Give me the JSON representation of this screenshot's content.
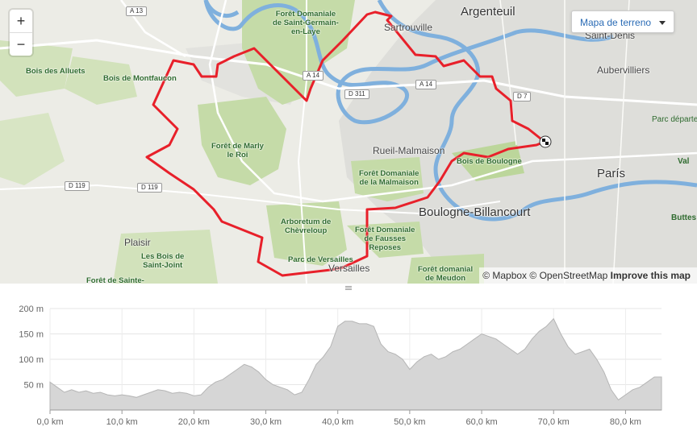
{
  "map": {
    "style_select": "Mapa de terreno",
    "attribution": {
      "mapbox": "© Mapbox",
      "osm": "© OpenStreetMap",
      "improve": "Improve this map"
    },
    "labels": {
      "argenteuil": "Argenteuil",
      "saint_denis": "Saint-Denis",
      "sartrouville": "Sartrouville",
      "aubervilliers": "Aubervilliers",
      "parc_departement": "Parc départeme",
      "rueil": "Rueil-Malmaison",
      "boulogne": "Boulogne-Billancourt",
      "paris": "París",
      "bois_boulogne": "Bois de Boulogne",
      "plaisir": "Plaisir",
      "versailles": "Versailles",
      "bois_alluets": "Bois des Alluets",
      "bois_montfaucon": "Bois de Montfaucon",
      "foret_saint_germain": "Forêt Domaniale\nde Saint-Germain-\nen-Laye",
      "foret_marly": "Forêt de Marly\nle Roi",
      "foret_malmaison": "Forêt Domaniale\nde la Malmaison",
      "arboretum": "Arboretum de\nChèvreloup",
      "foret_fausses": "Forêt Domaniale\nde Fausses\nReposes",
      "parc_versailles": "Parc de Versailles",
      "bois_saint_joint": "Les Bois de\nSaint-Joint",
      "foret_sainte": "Forêt de Sainte-",
      "foret_meudon": "Forêt domanial\nde Meudon",
      "buttes": "Buttes Chaumont",
      "val": "Val"
    },
    "shields": {
      "a13": "A 13",
      "a14_1": "A 14",
      "a14_2": "A 14",
      "d311": "D 311",
      "d7": "D 7",
      "d119_1": "D 119",
      "d119_2": "D 119"
    },
    "colors": {
      "route": "#e8202a",
      "water": "#7fb0dd",
      "forest": "#c7dcaa",
      "urban": "#dcdcd8"
    }
  },
  "chart_data": {
    "type": "area",
    "x_unit": "km",
    "y_unit": "m",
    "xlim": [
      0,
      85
    ],
    "ylim": [
      0,
      200
    ],
    "x_ticks": [
      "0,0 km",
      "10,0 km",
      "20,0 km",
      "30,0 km",
      "40,0 km",
      "50,0 km",
      "60,0 km",
      "70,0 km",
      "80,0 km"
    ],
    "y_ticks": [
      "50 m",
      "100 m",
      "150 m",
      "200 m"
    ],
    "grid": true,
    "series": [
      {
        "x": [
          0,
          1,
          2,
          3,
          4,
          5,
          6,
          7,
          8,
          9,
          10,
          11,
          12,
          13,
          14,
          15,
          16,
          17,
          18,
          19,
          20,
          21,
          22,
          23,
          24,
          25,
          26,
          27,
          28,
          29,
          30,
          31,
          32,
          33,
          34,
          35,
          36,
          37,
          38,
          39,
          40,
          41,
          42,
          43,
          44,
          45,
          46,
          47,
          48,
          49,
          50,
          51,
          52,
          53,
          54,
          55,
          56,
          57,
          58,
          59,
          60,
          61,
          62,
          63,
          64,
          65,
          66,
          67,
          68,
          69,
          70,
          71,
          72,
          73,
          74,
          75,
          76,
          77,
          78,
          79,
          80,
          81,
          82,
          83,
          84,
          85
        ],
        "y": [
          55,
          45,
          35,
          40,
          35,
          38,
          33,
          35,
          30,
          28,
          30,
          28,
          25,
          30,
          35,
          40,
          38,
          33,
          35,
          33,
          28,
          30,
          45,
          55,
          60,
          70,
          80,
          90,
          85,
          75,
          60,
          50,
          45,
          40,
          30,
          35,
          60,
          90,
          105,
          125,
          165,
          175,
          175,
          170,
          170,
          165,
          130,
          115,
          110,
          100,
          80,
          95,
          105,
          110,
          100,
          105,
          115,
          120,
          130,
          140,
          150,
          145,
          140,
          130,
          120,
          110,
          120,
          140,
          155,
          165,
          180,
          150,
          125,
          110,
          115,
          120,
          100,
          75,
          40,
          20,
          30,
          40,
          45,
          55,
          65,
          65
        ]
      }
    ]
  }
}
